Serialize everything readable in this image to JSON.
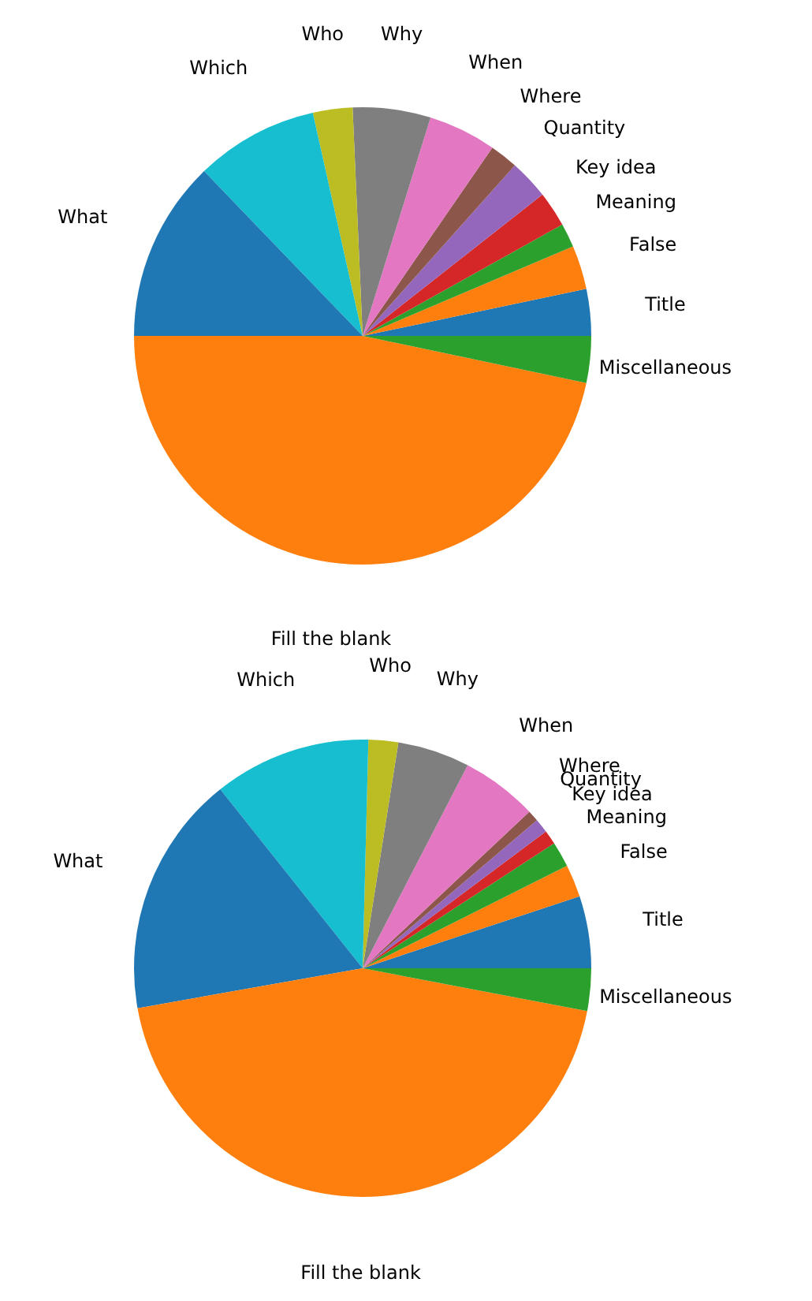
{
  "chart_data": [
    {
      "type": "pie",
      "categories": [
        "Title",
        "False",
        "Meaning",
        "Key idea",
        "Quantity",
        "Where",
        "When",
        "Why",
        "Who",
        "Which",
        "What",
        "Fill the blank",
        "Miscellaneous"
      ],
      "values": [
        3.3,
        3.1,
        1.7,
        2.5,
        2.8,
        2.0,
        4.8,
        5.5,
        2.8,
        8.7,
        12.8,
        46.7,
        3.3
      ],
      "colors": [
        "#1f77b4",
        "#ff7f0e",
        "#2ca02c",
        "#d62728",
        "#9467bd",
        "#8c564b",
        "#e377c2",
        "#7f7f7f",
        "#bcbd22",
        "#17becf",
        "#1f77b4",
        "#ff7f0e",
        "#2ca02c"
      ]
    },
    {
      "type": "pie",
      "categories": [
        "Title",
        "False",
        "Meaning",
        "Key idea",
        "Quantity",
        "Where",
        "When",
        "Why",
        "Who",
        "Which",
        "What",
        "Fill the blank",
        "Miscellaneous"
      ],
      "values": [
        5.1,
        2.3,
        1.8,
        1.0,
        1.0,
        0.8,
        5.4,
        5.1,
        2.1,
        11.1,
        17.1,
        44.2,
        3.0
      ],
      "colors": [
        "#1f77b4",
        "#ff7f0e",
        "#2ca02c",
        "#d62728",
        "#9467bd",
        "#8c564b",
        "#e377c2",
        "#7f7f7f",
        "#bcbd22",
        "#17becf",
        "#1f77b4",
        "#ff7f0e",
        "#2ca02c"
      ]
    }
  ]
}
